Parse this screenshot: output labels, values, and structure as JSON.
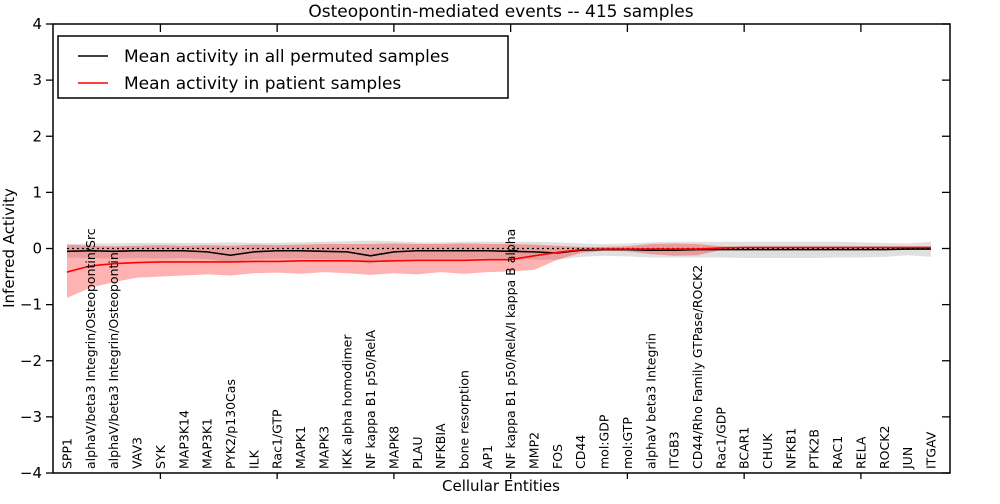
{
  "title": "Osteopontin-mediated events -- 415 samples",
  "chart_data": {
    "type": "line",
    "title": "Osteopontin-mediated events -- 415 samples",
    "xlabel": "Cellular Entities",
    "ylabel": "Inferred Activity",
    "ylim": [
      -4,
      4
    ],
    "yticks": [
      4,
      3,
      2,
      1,
      0,
      -1,
      -2,
      -3,
      -4
    ],
    "grid": false,
    "legend_position": "upper left",
    "zero_reference_line": "dotted black at y=0",
    "categories": [
      "SPP1",
      "alphaV/beta3 Integrin/Osteopontin/Src",
      "alphaV/beta3 Integrin/Osteopontin",
      "VAV3",
      "SYK",
      "MAP3K14",
      "MAP3K1",
      "PYK2/p130Cas",
      "ILK",
      "Rac1/GTP",
      "MAPK1",
      "MAPK3",
      "IKK alpha homodimer",
      "NF kappa B1 p50/RelA",
      "MAPK8",
      "PLAU",
      "NFKBIA",
      "bone resorption",
      "AP1",
      "NF kappa B1 p50/RelA/I kappa B alpha",
      "MMP2",
      "FOS",
      "CD44",
      "mol:GDP",
      "mol:GTP",
      "alphaV beta3 Integrin",
      "ITGB3",
      "CD44/Rho Family GTPase/ROCK2",
      "Rac1/GDP",
      "BCAR1",
      "CHUK",
      "NFKB1",
      "PTK2B",
      "RAC1",
      "RELA",
      "ROCK2",
      "JUN",
      "ITGAV"
    ],
    "series": [
      {
        "name": "Mean activity in all permuted samples",
        "color": "#000000",
        "band_color": "rgba(0,0,0,0.12)",
        "values": [
          -0.05,
          -0.04,
          -0.05,
          -0.04,
          -0.04,
          -0.04,
          -0.06,
          -0.12,
          -0.06,
          -0.04,
          -0.04,
          -0.05,
          -0.06,
          -0.13,
          -0.06,
          -0.04,
          -0.04,
          -0.04,
          -0.04,
          -0.05,
          -0.06,
          -0.08,
          -0.03,
          -0.02,
          -0.02,
          -0.03,
          -0.03,
          -0.02,
          -0.02,
          -0.02,
          -0.02,
          -0.02,
          -0.02,
          -0.02,
          -0.02,
          -0.02,
          -0.01,
          -0.01
        ],
        "band_low": [
          -0.16,
          -0.17,
          -0.18,
          -0.17,
          -0.18,
          -0.17,
          -0.19,
          -0.25,
          -0.19,
          -0.18,
          -0.18,
          -0.19,
          -0.2,
          -0.27,
          -0.2,
          -0.18,
          -0.18,
          -0.18,
          -0.18,
          -0.19,
          -0.2,
          -0.2,
          -0.15,
          -0.13,
          -0.14,
          -0.16,
          -0.16,
          -0.16,
          -0.16,
          -0.17,
          -0.17,
          -0.17,
          -0.17,
          -0.16,
          -0.16,
          -0.15,
          -0.12,
          -0.15
        ],
        "band_high": [
          0.08,
          0.09,
          0.09,
          0.1,
          0.1,
          0.1,
          0.1,
          0.11,
          0.1,
          0.1,
          0.11,
          0.12,
          0.13,
          0.14,
          0.13,
          0.11,
          0.11,
          0.12,
          0.12,
          0.12,
          0.12,
          0.11,
          0.09,
          0.08,
          0.09,
          0.11,
          0.12,
          0.12,
          0.12,
          0.12,
          0.12,
          0.12,
          0.12,
          0.12,
          0.11,
          0.1,
          0.09,
          0.12
        ]
      },
      {
        "name": "Mean activity in patient samples",
        "color": "#ff0000",
        "band_color": "rgba(255,0,0,0.3)",
        "values": [
          -0.42,
          -0.31,
          -0.27,
          -0.25,
          -0.24,
          -0.24,
          -0.24,
          -0.24,
          -0.23,
          -0.23,
          -0.22,
          -0.22,
          -0.22,
          -0.23,
          -0.22,
          -0.21,
          -0.21,
          -0.21,
          -0.2,
          -0.2,
          -0.13,
          -0.07,
          -0.02,
          -0.01,
          -0.01,
          -0.01,
          -0.01,
          -0.01,
          0.01,
          0.02,
          0.02,
          0.02,
          0.02,
          0.02,
          0.02,
          0.02,
          0.02,
          0.02
        ],
        "band_low": [
          -0.88,
          -0.7,
          -0.6,
          -0.52,
          -0.5,
          -0.48,
          -0.46,
          -0.48,
          -0.44,
          -0.43,
          -0.45,
          -0.42,
          -0.44,
          -0.47,
          -0.44,
          -0.46,
          -0.42,
          -0.45,
          -0.42,
          -0.41,
          -0.38,
          -0.2,
          -0.08,
          -0.04,
          -0.05,
          -0.1,
          -0.13,
          -0.12,
          -0.03,
          -0.01,
          -0.01,
          -0.01,
          -0.01,
          -0.01,
          -0.01,
          -0.01,
          -0.01,
          -0.01
        ],
        "band_high": [
          0.07,
          0.05,
          0.04,
          0.05,
          0.06,
          0.05,
          0.06,
          0.05,
          0.07,
          0.06,
          0.07,
          0.08,
          0.08,
          0.08,
          0.09,
          0.08,
          0.08,
          0.09,
          0.08,
          0.08,
          0.07,
          0.05,
          0.03,
          0.03,
          0.04,
          0.08,
          0.09,
          0.08,
          0.04,
          0.03,
          0.03,
          0.03,
          0.03,
          0.03,
          0.03,
          0.03,
          0.03,
          0.03
        ]
      }
    ]
  }
}
